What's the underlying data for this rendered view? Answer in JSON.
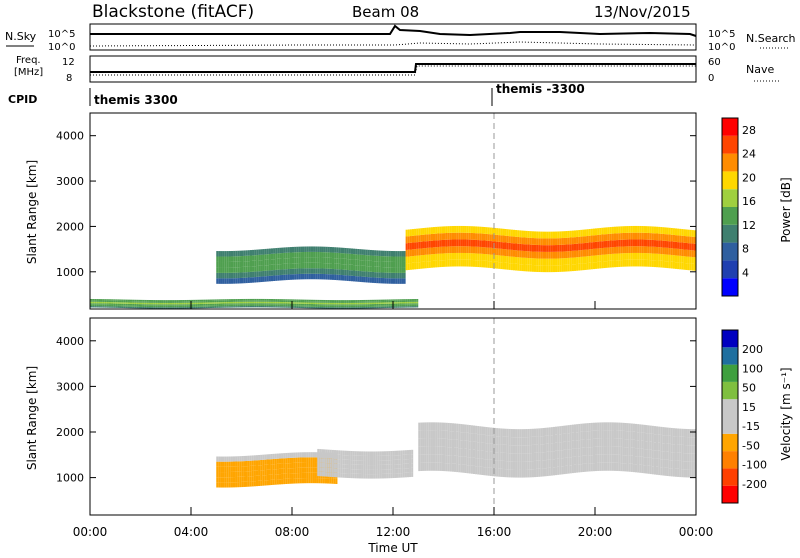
{
  "header": {
    "station": "Blackstone (fitACF)",
    "beam": "Beam 08",
    "date": "13/Nov/2015"
  },
  "aux_panels": {
    "nsky_label": "N.Sky",
    "nsearch_label": "N.Search",
    "freq_label_line1": "Freq.",
    "freq_label_line2": "[MHz]",
    "nave_label": "Nave",
    "cpid_label": "CPID",
    "noise_ticks": [
      "10^5",
      "10^0"
    ],
    "freq_ticks": [
      "12",
      "8"
    ],
    "nave_ticks": [
      "60",
      "0"
    ],
    "cpid_segments": [
      {
        "label": "themis 3300",
        "start_hour": 0
      },
      {
        "label": "themis -3300",
        "start_hour": 16.0
      }
    ]
  },
  "colors": {
    "power_scale": [
      "#0000ff",
      "#1f3fb0",
      "#2f5f9f",
      "#3f7f6f",
      "#4f9f4f",
      "#9fcf3f",
      "#ffd700",
      "#ff8c00",
      "#ff4500",
      "#ff0000"
    ],
    "velocity_scale": [
      "#ff0000",
      "#ff4000",
      "#ff8000",
      "#ffa500",
      "#c8c8c8",
      "#c8c8c8",
      "#7fbf3f",
      "#3f9f3f",
      "#1f6f9f",
      "#0000c0"
    ],
    "ground_scatter": "#c0c0b8",
    "marker_line": "#999999"
  },
  "chart_data": [
    {
      "type": "heatmap",
      "name": "power",
      "ylabel": "Slant Range [km]",
      "colorbar_label": "Power [dB]",
      "colorbar_ticks": [
        4,
        8,
        12,
        16,
        20,
        24,
        28
      ],
      "clim": [
        0,
        30
      ],
      "ylim": [
        180,
        4500
      ],
      "yticks": [
        1000,
        2000,
        3000,
        4000
      ],
      "xlim": [
        0,
        24
      ],
      "xticks": [
        "00:00",
        "04:00",
        "08:00",
        "12:00",
        "16:00",
        "20:00",
        "00:00"
      ],
      "marker_hour": 16.0,
      "bands": [
        {
          "t0": 5.0,
          "t1": 12.5,
          "lo": 700,
          "hi": 1550,
          "value": 8
        },
        {
          "t0": 12.5,
          "t1": 24.0,
          "lo": 950,
          "hi": 2000,
          "value": 18
        },
        {
          "t0": 0.0,
          "t1": 13.0,
          "lo": 180,
          "hi": 400,
          "value": 10
        }
      ]
    },
    {
      "type": "heatmap",
      "name": "velocity",
      "xlabel": "Time UT",
      "ylabel": "Slant Range [km]",
      "colorbar_label": "Velocity [m s⁻¹]",
      "colorbar_ticks": [
        200,
        100,
        50,
        15,
        -15,
        -50,
        -100,
        -200
      ],
      "clim": [
        -250,
        250
      ],
      "ylim": [
        180,
        4500
      ],
      "yticks": [
        1000,
        2000,
        3000,
        4000
      ],
      "xlim": [
        0,
        24
      ],
      "xticks": [
        "00:00",
        "04:00",
        "08:00",
        "12:00",
        "16:00",
        "20:00",
        "00:00"
      ],
      "marker_hour": 16.0,
      "bands": [
        {
          "t0": 5.0,
          "t1": 9.8,
          "lo": 750,
          "hi": 1550,
          "value": -60
        },
        {
          "t0": 9.0,
          "t1": 12.8,
          "lo": 950,
          "hi": 1650,
          "value": 30
        },
        {
          "t0": 13.0,
          "t1": 24.0,
          "lo": 950,
          "hi": 2200,
          "value": 0
        }
      ]
    }
  ]
}
